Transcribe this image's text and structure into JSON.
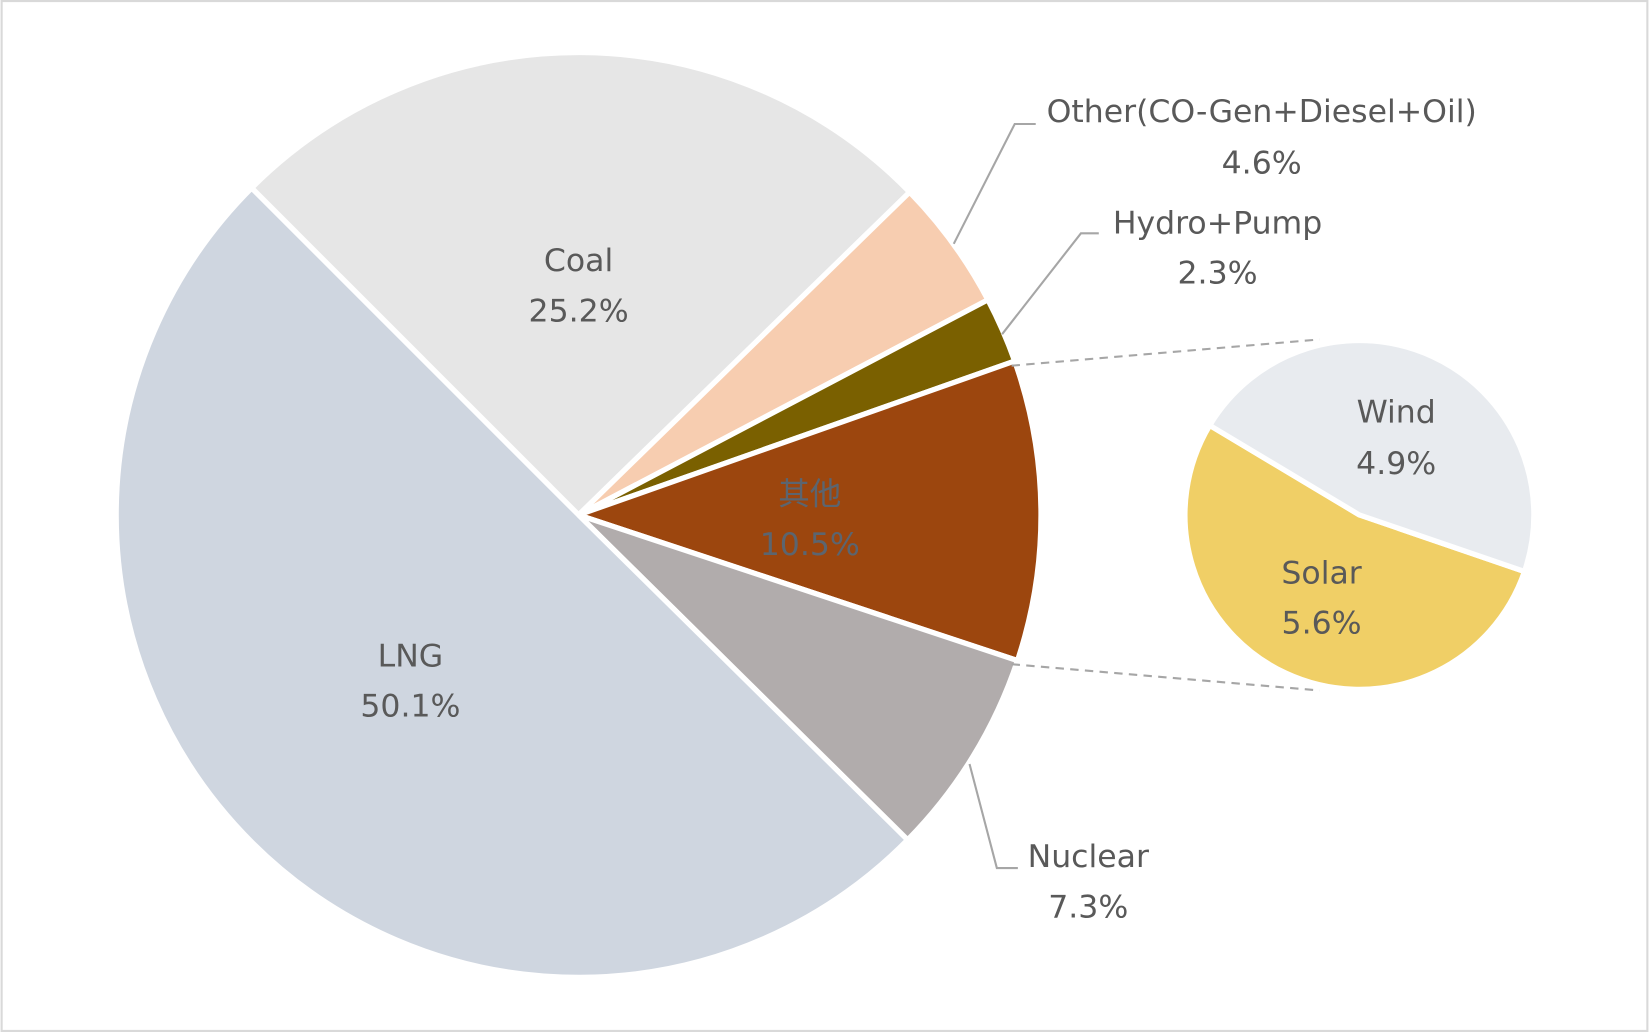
{
  "chart_data": {
    "type": "pie",
    "subtype": "pie-of-pie",
    "title": "",
    "start_angle_deg": 225,
    "slices": [
      {
        "name": "Coal",
        "label": "Coal",
        "value": 25.2,
        "value_label": "25.2%",
        "color": "#e6e6e6"
      },
      {
        "name": "Other",
        "label": "Other(CO-Gen+Diesel+Oil)",
        "value": 4.6,
        "value_label": "4.6%",
        "color": "#f7cdb0"
      },
      {
        "name": "Hydro",
        "label": "Hydro+Pump",
        "value": 2.3,
        "value_label": "2.3%",
        "color": "#7a6000"
      },
      {
        "name": "Others-group",
        "label": "其他",
        "value": 10.5,
        "value_label": "10.5%",
        "color": "#9c460e"
      },
      {
        "name": "Nuclear",
        "label": "Nuclear",
        "value": 7.3,
        "value_label": "7.3%",
        "color": "#b1acac"
      },
      {
        "name": "LNG",
        "label": "LNG",
        "value": 50.1,
        "value_label": "50.1%",
        "color": "#cfd6e0"
      }
    ],
    "secondary_pie": {
      "parent": "其他",
      "slices": [
        {
          "name": "Solar",
          "label": "Solar",
          "value": 5.6,
          "value_label": "5.6%",
          "color": "#f0cf66"
        },
        {
          "name": "Wind",
          "label": "Wind",
          "value": 4.9,
          "value_label": "4.9%",
          "color": "#e8ebef"
        }
      ]
    }
  }
}
